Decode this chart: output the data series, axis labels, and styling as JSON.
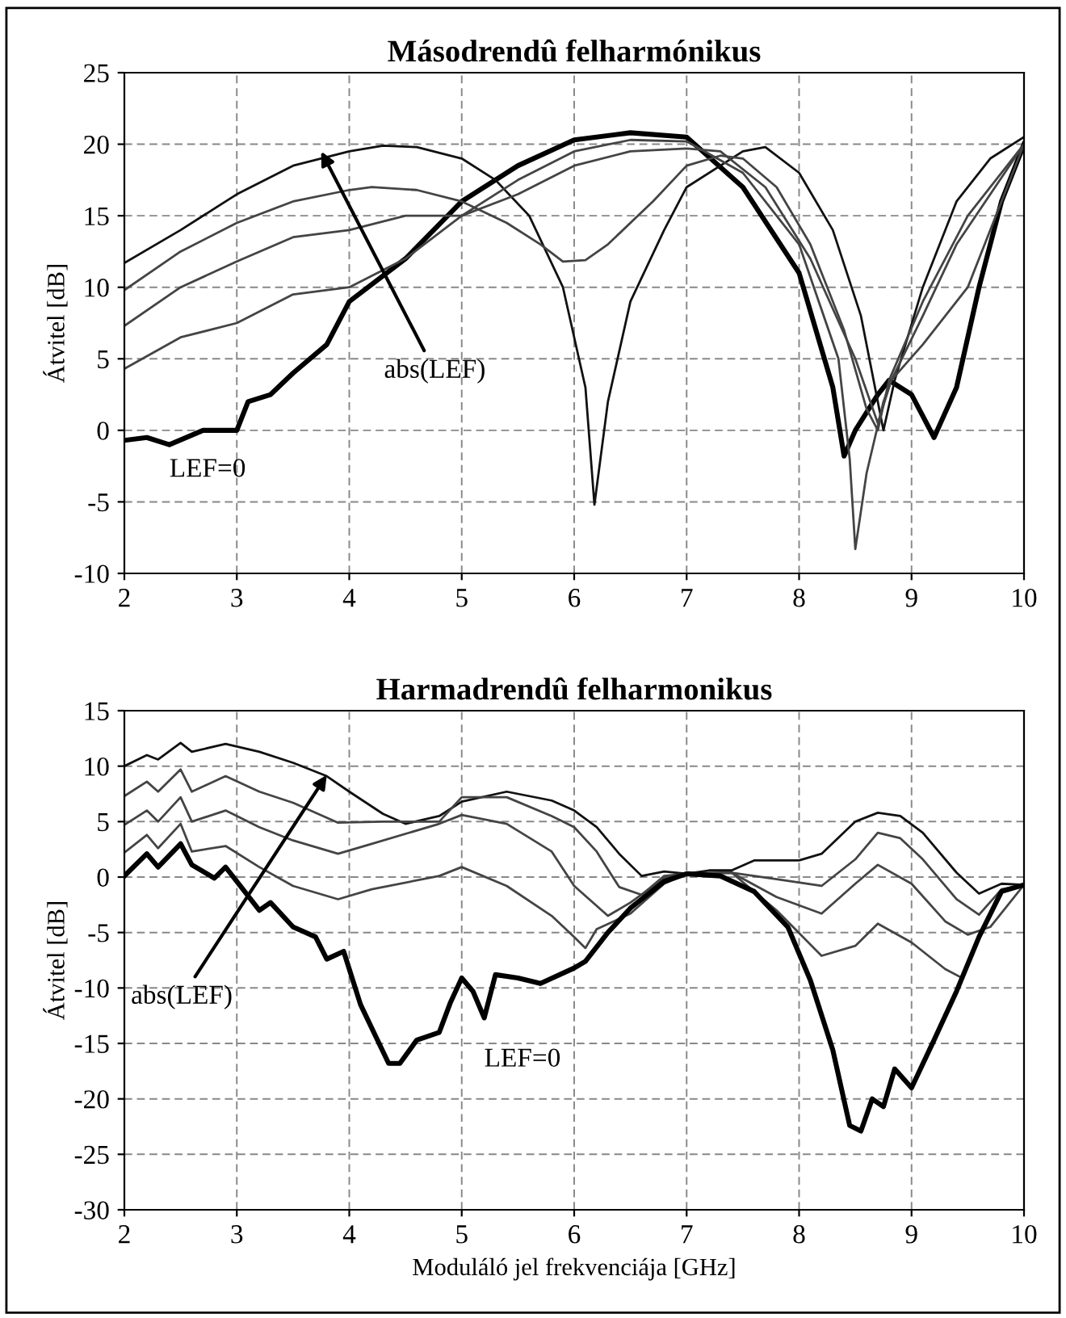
{
  "chart_data": [
    {
      "type": "line",
      "title": "Másodrendû felharmónikus",
      "ylabel": "Átvitel [dB]",
      "xlim": [
        2,
        10
      ],
      "ylim": [
        -10,
        25
      ],
      "xticks": [
        2,
        3,
        4,
        5,
        6,
        7,
        8,
        9,
        10
      ],
      "yticks": [
        -10,
        -5,
        0,
        5,
        10,
        15,
        20,
        25
      ],
      "grid": true,
      "legend": false,
      "marker": "none",
      "line_style": "solid",
      "annotations": [
        {
          "text": "abs(LEF)",
          "x": 3.75,
          "y": 19.5
        },
        "LEF=0"
      ],
      "series": [
        {
          "color": "#000000",
          "x": [
            2,
            2.2,
            2.4,
            2.7,
            3.0,
            3.1,
            3.3,
            3.5,
            3.8,
            4.0,
            4.5,
            5,
            5.5,
            6,
            6.5,
            7,
            7.5,
            8,
            8.3,
            8.4,
            8.5,
            8.7,
            8.8,
            9,
            9.2,
            9.4,
            9.6,
            9.8,
            10
          ],
          "values": [
            -0.7,
            -0.5,
            -1,
            0,
            0,
            2,
            2.5,
            4,
            6,
            9,
            12,
            16,
            18.5,
            20.3,
            20.8,
            20.5,
            17,
            11,
            3,
            -1.8,
            0,
            2.5,
            3.5,
            2.5,
            -0.5,
            3,
            10,
            16,
            20
          ]
        },
        {
          "color": "#111111",
          "x": [
            2,
            2.5,
            3,
            3.5,
            4,
            4.3,
            4.6,
            5,
            5.3,
            5.6,
            5.9,
            6.1,
            6.18,
            6.3,
            6.5,
            6.8,
            7,
            7.5,
            7.7,
            8,
            8.3,
            8.55,
            8.75,
            8.85,
            9.1,
            9.4,
            9.7,
            10
          ],
          "values": [
            11.7,
            14,
            16.5,
            18.5,
            19.5,
            19.9,
            19.8,
            19,
            17.5,
            15,
            10,
            3,
            -5.2,
            2,
            9,
            14,
            17,
            19.5,
            19.8,
            18,
            14,
            8,
            0,
            3.5,
            10,
            16,
            19,
            20.5
          ]
        },
        {
          "color": "#444444",
          "x": [
            2,
            2.5,
            3,
            3.5,
            4,
            4.2,
            4.6,
            5,
            5.4,
            5.7,
            5.9,
            6.1,
            6.3,
            6.7,
            7,
            7.3,
            7.5,
            7.8,
            8.1,
            8.4,
            8.6,
            8.7,
            8.8,
            9.1,
            9.5,
            10
          ],
          "values": [
            9.8,
            12.5,
            14.5,
            16,
            16.8,
            17,
            16.8,
            16,
            14.5,
            13,
            11.8,
            11.9,
            13,
            16,
            18.5,
            19.2,
            19,
            17,
            13,
            7,
            1.5,
            0,
            3.5,
            9,
            15,
            20
          ]
        },
        {
          "color": "#444444",
          "x": [
            2,
            2.5,
            3,
            3.5,
            4,
            4.5,
            5,
            5.5,
            6,
            6.5,
            7,
            7.3,
            7.7,
            8.1,
            8.5,
            8.7,
            8.82,
            9.1,
            9.4,
            10
          ],
          "values": [
            7.3,
            10,
            11.8,
            13.5,
            14,
            15,
            15,
            16.5,
            18.5,
            19.5,
            19.7,
            19.5,
            17,
            12,
            5,
            0.5,
            3.5,
            8,
            13,
            20
          ]
        },
        {
          "color": "#444444",
          "x": [
            2,
            2.5,
            3,
            3.5,
            4,
            4.5,
            5,
            5.5,
            6,
            6.5,
            7,
            7.5,
            8,
            8.35,
            8.45,
            8.5,
            8.6,
            8.75,
            8.82,
            9.1,
            9.5,
            10
          ],
          "values": [
            4.3,
            6.5,
            7.5,
            9.5,
            10,
            12,
            15,
            17.5,
            19.5,
            20.3,
            20.2,
            18,
            13,
            5,
            -2,
            -8.3,
            -3,
            2,
            3.5,
            6,
            10,
            20
          ]
        }
      ]
    },
    {
      "type": "line",
      "title": "Harmadrendû felharmonikus",
      "ylabel": "Átvitel [dB]",
      "xlabel": "Moduláló jel frekvenciája [GHz]",
      "xlim": [
        2,
        10
      ],
      "ylim": [
        -30,
        15
      ],
      "xticks": [
        2,
        3,
        4,
        5,
        6,
        7,
        8,
        9,
        10
      ],
      "yticks": [
        -30,
        -25,
        -20,
        -15,
        -10,
        -5,
        0,
        5,
        10,
        15
      ],
      "grid": true,
      "legend": false,
      "marker": "none",
      "line_style": "solid",
      "annotations": [
        {
          "text": "abs(LEF)",
          "x": 3.8,
          "y": 9.2
        },
        "LEF=0"
      ],
      "series": [
        {
          "color": "#111111",
          "x": [
            2,
            2.2,
            2.3,
            2.5,
            2.6,
            2.9,
            3.2,
            3.5,
            3.8,
            4.0,
            4.3,
            4.5,
            4.8,
            5.0,
            5.4,
            5.8,
            6.0,
            6.2,
            6.4,
            6.6,
            6.8,
            7.0,
            7.2,
            7.4,
            7.6,
            8.0,
            8.2,
            8.5,
            8.7,
            8.9,
            9.1,
            9.4,
            9.6,
            9.8,
            10
          ],
          "values": [
            10,
            11,
            10.6,
            12.1,
            11.3,
            12,
            11.3,
            10.3,
            9.1,
            7.7,
            5.7,
            4.8,
            5.5,
            6.8,
            7.7,
            6.9,
            6,
            4.5,
            2.1,
            0.1,
            0.5,
            0.3,
            0.6,
            0.6,
            1.5,
            1.5,
            2.1,
            5,
            5.8,
            5.5,
            4,
            0.4,
            -1.5,
            -0.6,
            -0.7
          ]
        },
        {
          "color": "#444444",
          "x": [
            2,
            2.2,
            2.3,
            2.5,
            2.6,
            2.9,
            3.2,
            3.5,
            3.9,
            4.3,
            4.8,
            5.0,
            5.4,
            5.8,
            6.0,
            6.2,
            6.4,
            6.6,
            6.8,
            7.0,
            7.4,
            7.8,
            8.2,
            8.5,
            8.7,
            8.9,
            9.1,
            9.4,
            9.6,
            9.8,
            10
          ],
          "values": [
            7.3,
            8.6,
            7.7,
            9.7,
            7.7,
            9.1,
            7.7,
            6.7,
            4.9,
            5,
            5,
            7.2,
            7.2,
            5.5,
            4.5,
            2.3,
            -0.9,
            -1.6,
            0.1,
            0.3,
            0.4,
            -0.2,
            -0.8,
            1.6,
            4,
            3.5,
            1.6,
            -2,
            -3.4,
            -1.1,
            -0.7
          ]
        },
        {
          "color": "#444444",
          "x": [
            2,
            2.2,
            2.3,
            2.5,
            2.6,
            2.9,
            3.2,
            3.5,
            3.9,
            4.2,
            4.8,
            5.0,
            5.4,
            5.8,
            6.0,
            6.3,
            6.5,
            6.8,
            7.0,
            7.4,
            7.8,
            8.2,
            8.5,
            8.7,
            9.0,
            9.3,
            9.5,
            9.7,
            10
          ],
          "values": [
            4.7,
            6,
            5,
            7.2,
            5,
            6,
            4.5,
            3.3,
            2.1,
            3,
            4.8,
            5.6,
            4.8,
            2.3,
            -0.8,
            -3.5,
            -2.3,
            -0.1,
            0.3,
            0.4,
            -1.8,
            -3.3,
            -0.6,
            1.1,
            -0.6,
            -4,
            -5.2,
            -4.5,
            -0.7
          ]
        },
        {
          "color": "#444444",
          "x": [
            2,
            2.2,
            2.3,
            2.5,
            2.6,
            2.9,
            3.2,
            3.5,
            3.9,
            4.2,
            4.8,
            5.0,
            5.4,
            5.8,
            6.0,
            6.1,
            6.2,
            6.5,
            6.8,
            7.0,
            7.4,
            7.8,
            8.2,
            8.5,
            8.7,
            9.0,
            9.3,
            9.45
          ],
          "values": [
            2.2,
            3.8,
            2.6,
            4.8,
            2.3,
            2.8,
            0.9,
            -0.8,
            -2,
            -1.1,
            0.1,
            0.9,
            -0.8,
            -3.5,
            -5.4,
            -6.4,
            -4.7,
            -3.3,
            -0.6,
            0.3,
            0.4,
            -3,
            -7.1,
            -6.2,
            -4.2,
            -5.9,
            -8.3,
            -9.1
          ]
        },
        {
          "color": "#000000",
          "x": [
            2,
            2.2,
            2.3,
            2.5,
            2.6,
            2.8,
            2.9,
            3.2,
            3.3,
            3.5,
            3.7,
            3.8,
            3.95,
            4.1,
            4.35,
            4.45,
            4.6,
            4.8,
            4.9,
            5.0,
            5.1,
            5.2,
            5.3,
            5.5,
            5.7,
            6.0,
            6.1,
            6.3,
            6.5,
            6.8,
            7.0,
            7.3,
            7.6,
            7.9,
            8.1,
            8.3,
            8.45,
            8.55,
            8.65,
            8.75,
            8.85,
            9.0,
            9.2,
            9.4,
            9.6,
            9.8,
            10
          ],
          "values": [
            0.1,
            2.1,
            0.9,
            3,
            1.1,
            -0.1,
            0.9,
            -3,
            -2.3,
            -4.5,
            -5.4,
            -7.4,
            -6.7,
            -11.5,
            -16.8,
            -16.8,
            -14.7,
            -14,
            -11.3,
            -9.1,
            -10.3,
            -12.7,
            -8.8,
            -9.1,
            -9.6,
            -8.2,
            -7.6,
            -5,
            -2.8,
            -0.4,
            0.3,
            0.1,
            -1.3,
            -4.5,
            -9.3,
            -15.6,
            -22.4,
            -22.9,
            -20,
            -20.7,
            -17.3,
            -19,
            -14.7,
            -10.3,
            -5.4,
            -1.3,
            -0.7
          ]
        }
      ]
    }
  ]
}
